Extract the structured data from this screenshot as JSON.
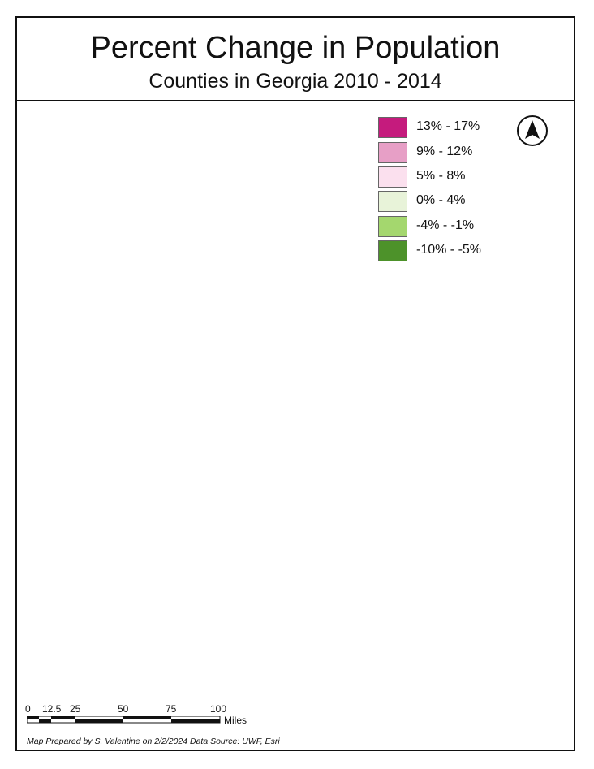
{
  "title": "Percent Change in Population",
  "subtitle": "Counties in Georgia 2010 - 2014",
  "legend": [
    {
      "label": "13% - 17%",
      "color": "#c51b7d"
    },
    {
      "label": "9% - 12%",
      "color": "#e79fc6"
    },
    {
      "label": "5% - 8%",
      "color": "#fbe0ee"
    },
    {
      "label": "0% - 4%",
      "color": "#e8f3d9"
    },
    {
      "label": "-4% - -1%",
      "color": "#a4d76e"
    },
    {
      "label": "-10% - -5%",
      "color": "#4d922a"
    }
  ],
  "scale_bar": {
    "ticks": [
      "0",
      "12.5",
      "25",
      "50",
      "75",
      "100"
    ],
    "unit": "Miles"
  },
  "credit": "Map Prepared by S. Valentine on 2/2/2024 Data Source: UWF, Esri",
  "north_arrow": "north-arrow-icon"
}
